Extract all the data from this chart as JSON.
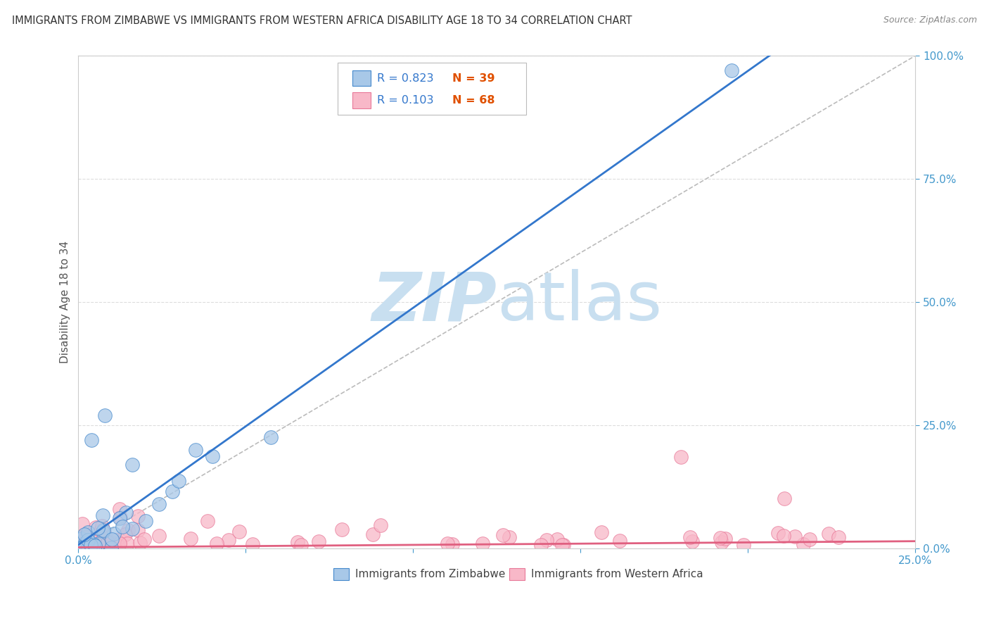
{
  "title": "IMMIGRANTS FROM ZIMBABWE VS IMMIGRANTS FROM WESTERN AFRICA DISABILITY AGE 18 TO 34 CORRELATION CHART",
  "source": "Source: ZipAtlas.com",
  "ylabel": "Disability Age 18 to 34",
  "legend_blue_r": "R = 0.823",
  "legend_blue_n": "N = 39",
  "legend_pink_r": "R = 0.103",
  "legend_pink_n": "N = 68",
  "legend_blue_label": "Immigrants from Zimbabwe",
  "legend_pink_label": "Immigrants from Western Africa",
  "blue_fill": "#a8c8e8",
  "blue_edge": "#4488cc",
  "pink_fill": "#f8b8c8",
  "pink_edge": "#e87898",
  "blue_line": "#3377cc",
  "pink_line": "#e06080",
  "ref_line": "#bbbbbb",
  "r_color": "#3377cc",
  "n_color": "#e05000",
  "watermark_color": "#c8dff0",
  "grid_color": "#dddddd",
  "bg_color": "#ffffff",
  "xlim": [
    0.0,
    0.25
  ],
  "ylim": [
    0.0,
    1.0
  ],
  "zim_seed": 42,
  "wa_seed": 99
}
